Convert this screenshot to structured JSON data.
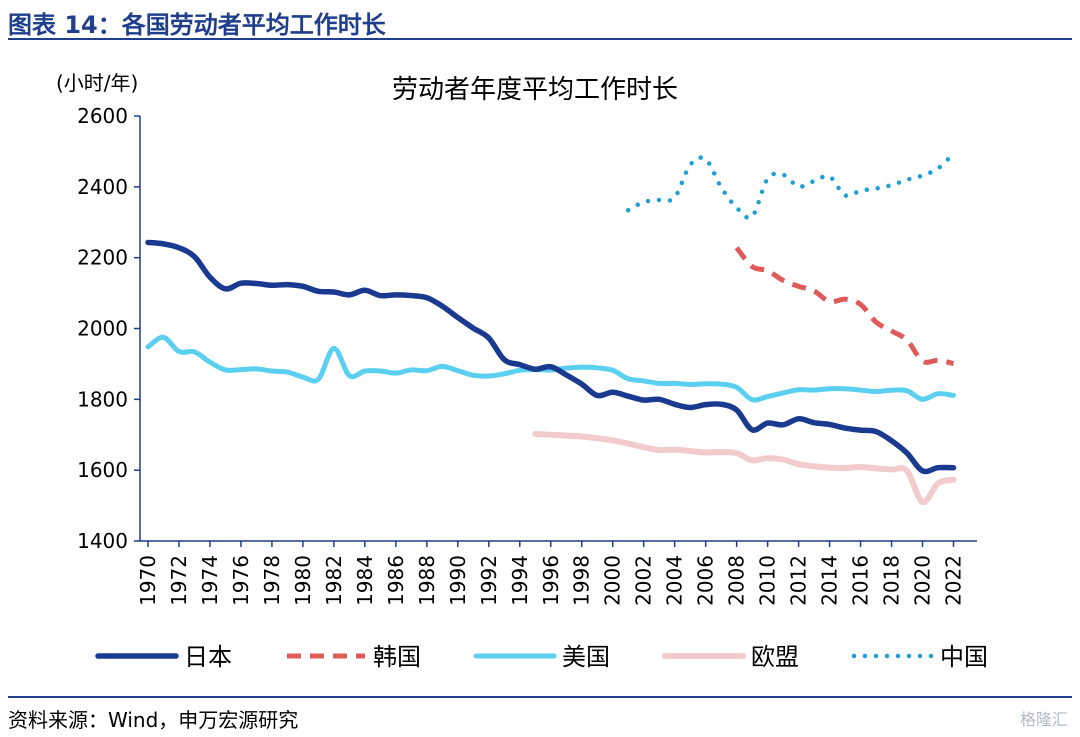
{
  "figure": {
    "title": "图表 14：各国劳动者平均工作时长",
    "source": "资料来源：Wind，申万宏源研究",
    "watermark": "格隆汇"
  },
  "chart_data": {
    "type": "line",
    "title": "劳动者年度平均工作时长",
    "ylabel": "(小时/年)",
    "xlabel": "",
    "ylim": [
      1400,
      2600
    ],
    "yticks": [
      1400,
      1600,
      1800,
      2000,
      2200,
      2400,
      2600
    ],
    "xlim": [
      1970,
      2023
    ],
    "xticks": [
      "1970",
      "1972",
      "1974",
      "1976",
      "1978",
      "1980",
      "1982",
      "1984",
      "1986",
      "1988",
      "1990",
      "1992",
      "1994",
      "1996",
      "1998",
      "2000",
      "2002",
      "2004",
      "2006",
      "2008",
      "2010",
      "2012",
      "2014",
      "2016",
      "2018",
      "2020",
      "2022"
    ],
    "legend_position": "bottom",
    "grid": false,
    "series": [
      {
        "name": "日本",
        "color": "#1a3a8f",
        "style": "solid",
        "x": [
          1970,
          1971,
          1972,
          1973,
          1974,
          1975,
          1976,
          1977,
          1978,
          1979,
          1980,
          1981,
          1982,
          1983,
          1984,
          1985,
          1986,
          1987,
          1988,
          1989,
          1990,
          1991,
          1992,
          1993,
          1994,
          1995,
          1996,
          1997,
          1998,
          1999,
          2000,
          2001,
          2002,
          2003,
          2004,
          2005,
          2006,
          2007,
          2008,
          2009,
          2010,
          2011,
          2012,
          2013,
          2014,
          2015,
          2016,
          2017,
          2018,
          2019,
          2020,
          2021,
          2022
        ],
        "y": [
          2243,
          2239,
          2228,
          2203,
          2145,
          2112,
          2128,
          2127,
          2122,
          2124,
          2119,
          2105,
          2103,
          2095,
          2108,
          2093,
          2095,
          2093,
          2087,
          2063,
          2031,
          2001,
          1973,
          1912,
          1898,
          1885,
          1892,
          1869,
          1843,
          1811,
          1820,
          1809,
          1798,
          1800,
          1786,
          1777,
          1785,
          1786,
          1770,
          1714,
          1733,
          1728,
          1745,
          1734,
          1729,
          1719,
          1713,
          1709,
          1683,
          1648,
          1598,
          1607,
          1607
        ]
      },
      {
        "name": "韩国",
        "color": "#e05a5a",
        "style": "dashed",
        "x": [
          2008,
          2009,
          2010,
          2011,
          2012,
          2013,
          2014,
          2015,
          2016,
          2017,
          2018,
          2019,
          2020,
          2021,
          2022
        ],
        "y": [
          2228,
          2175,
          2163,
          2136,
          2119,
          2106,
          2076,
          2083,
          2068,
          2018,
          1993,
          1967,
          1908,
          1910,
          1901
        ]
      },
      {
        "name": "美国",
        "color": "#5bcff0",
        "style": "solid",
        "x": [
          1970,
          1971,
          1972,
          1973,
          1974,
          1975,
          1976,
          1977,
          1978,
          1979,
          1980,
          1981,
          1982,
          1983,
          1984,
          1985,
          1986,
          1987,
          1988,
          1989,
          1990,
          1991,
          1992,
          1993,
          1994,
          1995,
          1996,
          1997,
          1998,
          1999,
          2000,
          2001,
          2002,
          2003,
          2004,
          2005,
          2006,
          2007,
          2008,
          2009,
          2010,
          2011,
          2012,
          2013,
          2014,
          2015,
          2016,
          2017,
          2018,
          2019,
          2020,
          2021,
          2022
        ],
        "y": [
          1948,
          1975,
          1935,
          1934,
          1905,
          1883,
          1884,
          1886,
          1880,
          1877,
          1863,
          1857,
          1944,
          1867,
          1880,
          1880,
          1874,
          1883,
          1881,
          1893,
          1881,
          1868,
          1866,
          1872,
          1882,
          1884,
          1883,
          1888,
          1891,
          1889,
          1882,
          1858,
          1852,
          1845,
          1845,
          1842,
          1844,
          1843,
          1834,
          1799,
          1808,
          1818,
          1827,
          1826,
          1830,
          1830,
          1826,
          1822,
          1826,
          1824,
          1800,
          1816,
          1811
        ]
      },
      {
        "name": "欧盟",
        "color": "#f2cccc",
        "style": "solid",
        "x": [
          1995,
          1996,
          1997,
          1998,
          1999,
          2000,
          2001,
          2002,
          2003,
          2004,
          2005,
          2006,
          2007,
          2008,
          2009,
          2010,
          2011,
          2012,
          2013,
          2014,
          2015,
          2016,
          2017,
          2018,
          2019,
          2020,
          2021,
          2022
        ],
        "y": [
          1702,
          1700,
          1698,
          1695,
          1690,
          1684,
          1675,
          1665,
          1657,
          1658,
          1654,
          1650,
          1651,
          1648,
          1628,
          1634,
          1630,
          1617,
          1611,
          1607,
          1606,
          1609,
          1605,
          1602,
          1598,
          1510,
          1563,
          1573
        ]
      },
      {
        "name": "中国",
        "color": "#1d9fd4",
        "style": "dotted",
        "x": [
          2001,
          2002,
          2003,
          2004,
          2005,
          2006,
          2007,
          2008,
          2009,
          2010,
          2011,
          2012,
          2013,
          2014,
          2015,
          2016,
          2017,
          2018,
          2019,
          2020,
          2021,
          2022
        ],
        "y": [
          2334,
          2357,
          2363,
          2370,
          2462,
          2478,
          2399,
          2341,
          2316,
          2423,
          2434,
          2401,
          2416,
          2429,
          2376,
          2389,
          2395,
          2405,
          2420,
          2432,
          2452,
          2494
        ]
      }
    ]
  }
}
